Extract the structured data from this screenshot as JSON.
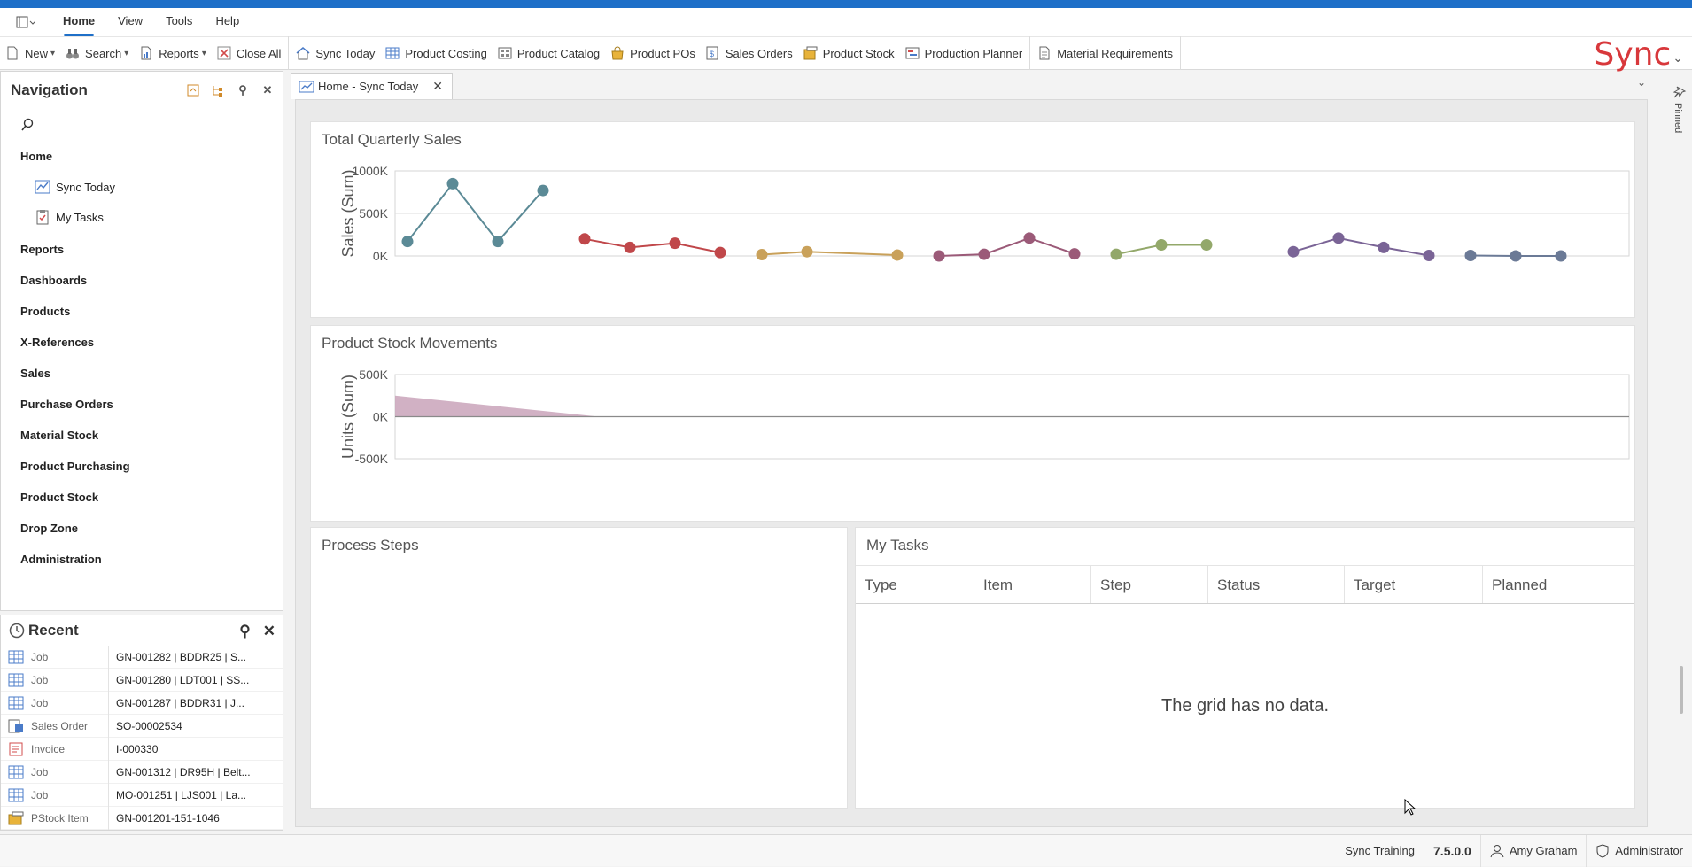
{
  "menu": {
    "items": [
      "Home",
      "View",
      "Tools",
      "Help"
    ],
    "active": "Home"
  },
  "toolbar": {
    "new_label": "New",
    "search_label": "Search",
    "reports_label": "Reports",
    "close_all_label": "Close All",
    "sync_today_label": "Sync Today",
    "product_costing_label": "Product Costing",
    "product_catalog_label": "Product Catalog",
    "product_pos_label": "Product POs",
    "sales_orders_label": "Sales Orders",
    "product_stock_label": "Product Stock",
    "production_planner_label": "Production Planner",
    "material_requirements_label": "Material Requirements",
    "logo_text": "Sync"
  },
  "navigation": {
    "title": "Navigation",
    "home_label": "Home",
    "home_items": [
      "Sync Today",
      "My Tasks"
    ],
    "sections": [
      "Reports",
      "Dashboards",
      "Products",
      "X-References",
      "Sales",
      "Purchase Orders",
      "Material Stock",
      "Product Purchasing",
      "Product Stock",
      "Drop Zone",
      "Administration"
    ]
  },
  "recent": {
    "title": "Recent",
    "items": [
      {
        "type": "Job",
        "value": "GN-001282 |  BDDR25 | S...",
        "icon": "job-icon"
      },
      {
        "type": "Job",
        "value": "GN-001280 | LDT001 | SS...",
        "icon": "job-icon"
      },
      {
        "type": "Job",
        "value": "GN-001287 |  BDDR31 | J...",
        "icon": "job-icon"
      },
      {
        "type": "Sales Order",
        "value": "SO-00002534",
        "icon": "sales-order-icon"
      },
      {
        "type": "Invoice",
        "value": "I-000330",
        "icon": "invoice-icon"
      },
      {
        "type": "Job",
        "value": "GN-001312 | DR95H | Belt...",
        "icon": "job-icon"
      },
      {
        "type": "Job",
        "value": "MO-001251 | LJS001 | La...",
        "icon": "job-icon"
      },
      {
        "type": "PStock Item",
        "value": "GN-001201-151-1046",
        "icon": "pstock-item-icon"
      }
    ]
  },
  "tab": {
    "label": "Home - Sync Today"
  },
  "pinned_label": "Pinned",
  "panels": {
    "sales_title": "Total Quarterly Sales",
    "stock_title": "Product Stock Movements",
    "process_title": "Process Steps",
    "tasks_title": "My Tasks",
    "tasks_columns": [
      "Type",
      "Item",
      "Step",
      "Status",
      "Target",
      "Planned"
    ],
    "tasks_empty": "The grid has no data."
  },
  "chart_data": [
    {
      "type": "line",
      "title": "Total Quarterly Sales",
      "ylabel": "Sales (Sum)",
      "yticks": [
        "1000K",
        "500K",
        "0K"
      ],
      "ylim": [
        0,
        1000000
      ],
      "series": [
        {
          "color": "#5b8a96",
          "values": [
            170000,
            850000,
            170000,
            770000
          ]
        },
        {
          "color": "#c0474a",
          "values": [
            200000,
            100000,
            150000,
            40000
          ]
        },
        {
          "color": "#c9a15a",
          "values": [
            15000,
            50000,
            null,
            10000
          ]
        },
        {
          "color": "#9b5a78",
          "values": [
            0,
            20000,
            210000,
            25000
          ]
        },
        {
          "color": "#93a86a",
          "values": [
            20000,
            130000,
            130000
          ]
        },
        {
          "color": "#7a6496",
          "values": [
            50000,
            210000,
            100000,
            5000
          ]
        },
        {
          "color": "#6b7a96",
          "values": [
            5000,
            0,
            0
          ]
        }
      ]
    },
    {
      "type": "area",
      "title": "Product Stock Movements",
      "ylabel": "Units (Sum)",
      "yticks": [
        "500K",
        "0K",
        "-500K"
      ],
      "ylim": [
        -500000,
        500000
      ],
      "series": [
        {
          "color": "#c9a3ba",
          "values": [
            250000,
            0,
            0,
            0,
            0,
            0,
            0,
            0
          ]
        }
      ]
    }
  ],
  "status": {
    "db": "Sync Training",
    "version": "7.5.0.0",
    "user": "Amy Graham",
    "role": "Administrator"
  }
}
